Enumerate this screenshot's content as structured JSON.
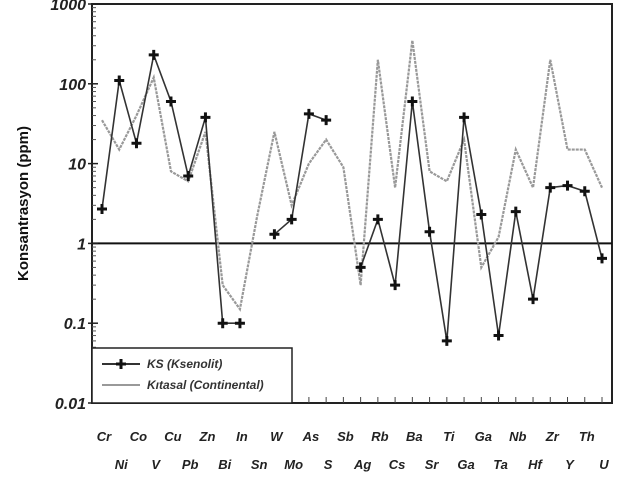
{
  "chart_data": {
    "type": "line",
    "ylabel": "Konsantrasyon (ppm)",
    "yscale": "log",
    "ylim": [
      0.01,
      1000
    ],
    "yticks": [
      "0.01",
      "0.1",
      "1",
      "10",
      "100",
      "1000"
    ],
    "reference_line_y": 1,
    "categories": [
      "Cr",
      "Ni",
      "Co",
      "V",
      "Cu",
      "Pb",
      "Zn",
      "Bi",
      "In",
      "Sn",
      "W",
      "Mo",
      "As",
      "S",
      "Sb",
      "Ag",
      "Rb",
      "Cs",
      "Ba",
      "Sr",
      "Ti",
      "Ga",
      "Ga",
      "Ta",
      "Nb",
      "Hf",
      "Zr",
      "Y",
      "Th",
      "U"
    ],
    "category_labels_top": [
      "Cr",
      "Co",
      "Cu",
      "Zn",
      "In",
      "W",
      "As",
      "Sb",
      "Rb",
      "Ba",
      "Ti",
      "Ga",
      "Nb",
      "Zr",
      "Th"
    ],
    "category_labels_bottom": [
      "Ni",
      "V",
      "Pb",
      "Bi",
      "Sn",
      "Mo",
      "S",
      "Ag",
      "Cs",
      "Sr",
      "Ga",
      "Ta",
      "Hf",
      "Y",
      "U"
    ],
    "series": [
      {
        "name": "KS (Ksenolit)",
        "color": "#333333",
        "marker": "plus",
        "values": [
          2.7,
          110,
          18,
          230,
          60,
          7,
          38,
          0.1,
          0.1,
          null,
          1.3,
          2,
          42,
          35,
          null,
          0.5,
          2,
          0.3,
          60,
          1.4,
          0.06,
          38,
          2.3,
          0.07,
          2.5,
          0.2,
          5,
          5.3,
          4.5,
          0.65
        ]
      },
      {
        "name": "Kıtasal (Continental)",
        "color": "#999999",
        "marker": "none",
        "values": [
          35,
          15,
          40,
          120,
          8,
          6,
          25,
          0.3,
          0.15,
          2.2,
          25,
          3,
          10,
          20,
          9,
          0.3,
          200,
          5,
          350,
          8,
          6,
          20,
          0.5,
          1.2,
          15,
          5,
          200,
          15,
          15,
          5
        ]
      }
    ],
    "legend": {
      "position": "bottom-left",
      "items": [
        "KS (Ksenolit)",
        "Kıtasal (Continental)"
      ]
    }
  }
}
